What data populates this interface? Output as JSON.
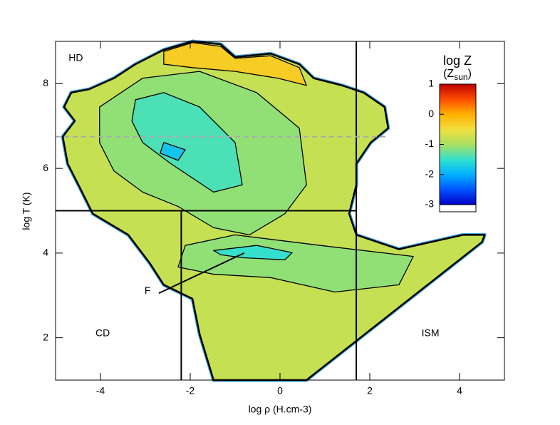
{
  "chart_data": {
    "type": "phase_diagram",
    "xlabel": "log ρ (H.cm-3)",
    "ylabel": "log T (K)",
    "xlim": [
      -5,
      5
    ],
    "ylim": [
      1,
      9
    ],
    "xticks": [
      -4,
      -2,
      0,
      2,
      4
    ],
    "yticks": [
      2,
      4,
      6,
      8
    ],
    "colorbar": {
      "title": "log Z",
      "unit_open": "(Z",
      "unit_sub": "sun",
      "unit_close": ")",
      "clim": [
        -3,
        1
      ],
      "ticks": [
        1,
        0,
        -1,
        -2,
        -3
      ]
    },
    "regions": [
      {
        "z": -0.8,
        "x": [
          -4.84,
          -4.57,
          -4.81,
          -4.65,
          -4.25,
          -3.7,
          -3.22,
          -2.59,
          -1.95,
          -1.32,
          -1.0,
          -0.21,
          0.43,
          0.75,
          1.38,
          1.86,
          2.33,
          2.41,
          2.02,
          1.7,
          1.7,
          1.54,
          1.7,
          2.65,
          4.08,
          4.56,
          4.5,
          0.59,
          -1.48,
          -1.79,
          -1.95,
          -2.59,
          -2.9,
          -3.38,
          -4.17,
          -4.49,
          -4.73
        ],
        "y": [
          6.75,
          7.12,
          7.45,
          7.79,
          7.87,
          8.13,
          8.46,
          8.8,
          9.0,
          8.93,
          8.63,
          8.71,
          8.46,
          8.13,
          7.96,
          7.79,
          7.45,
          6.95,
          6.61,
          6.11,
          5.61,
          4.93,
          4.43,
          4.09,
          4.43,
          4.43,
          4.26,
          1.0,
          1.0,
          2.08,
          2.92,
          3.25,
          3.76,
          4.43,
          4.93,
          5.61,
          6.11
        ]
      },
      {
        "z": -0.3,
        "x": [
          -2.59,
          -1.95,
          -1.32,
          -1.0,
          -0.21,
          0.43,
          0.59,
          -0.05,
          -1.0,
          -1.95,
          -2.59
        ],
        "y": [
          8.76,
          8.97,
          8.88,
          8.6,
          8.66,
          8.38,
          7.96,
          8.13,
          8.29,
          8.38,
          8.46
        ]
      },
      {
        "z": -1.1,
        "x": [
          -4.02,
          -3.06,
          -1.79,
          -0.52,
          0.43,
          0.59,
          0.11,
          -0.68,
          -1.48,
          -2.27,
          -3.06,
          -3.7,
          -4.02
        ],
        "y": [
          7.45,
          8.13,
          8.29,
          7.79,
          6.95,
          5.61,
          4.93,
          4.43,
          4.6,
          5.1,
          5.44,
          5.94,
          6.61
        ]
      },
      {
        "z": -1.1,
        "x": [
          -2.11,
          -1.0,
          0.9,
          2.97,
          2.65,
          1.22,
          -0.21,
          -1.48,
          -2.27
        ],
        "y": [
          4.18,
          4.43,
          4.18,
          3.92,
          3.25,
          3.08,
          3.42,
          3.5,
          3.67
        ]
      },
      {
        "z": -1.4,
        "x": [
          -3.22,
          -2.59,
          -1.79,
          -1.0,
          -0.84,
          -1.48,
          -2.43,
          -3.06,
          -3.3
        ],
        "y": [
          7.62,
          7.79,
          7.45,
          6.61,
          5.61,
          5.44,
          6.11,
          6.61,
          7.12
        ]
      },
      {
        "z": -1.5,
        "x": [
          -1.48,
          -0.52,
          0.27,
          0.11,
          -0.84,
          -1.32
        ],
        "y": [
          4.06,
          4.18,
          4.01,
          3.84,
          3.89,
          3.96
        ]
      },
      {
        "z": -1.8,
        "x": [
          -2.59,
          -2.11,
          -2.27,
          -2.67
        ],
        "y": [
          6.61,
          6.44,
          6.19,
          6.36
        ]
      }
    ],
    "lines": [
      {
        "x": [
          1.7,
          1.7
        ],
        "y": [
          1,
          9
        ],
        "style": "solid",
        "color": "#000000"
      },
      {
        "x": [
          -5,
          1.7
        ],
        "y": [
          5,
          5
        ],
        "style": "solid",
        "color": "#000000"
      },
      {
        "x": [
          -2.2,
          -2.2
        ],
        "y": [
          1,
          5
        ],
        "style": "solid",
        "color": "#000000"
      },
      {
        "x": [
          -5,
          2.4
        ],
        "y": [
          6.75,
          6.75
        ],
        "style": "dashed",
        "color": "#aaaaaa"
      },
      {
        "x": [
          -2.7,
          -0.8
        ],
        "y": [
          3.05,
          4.0
        ],
        "style": "solid",
        "color": "#000000"
      }
    ],
    "annotations": [
      {
        "text": "HD",
        "x": -4.55,
        "y": 8.6
      },
      {
        "text": "CD",
        "x": -3.95,
        "y": 2.1
      },
      {
        "text": "ISM",
        "x": 3.35,
        "y": 2.1
      },
      {
        "text": "F",
        "x": -2.95,
        "y": 3.1
      }
    ]
  }
}
